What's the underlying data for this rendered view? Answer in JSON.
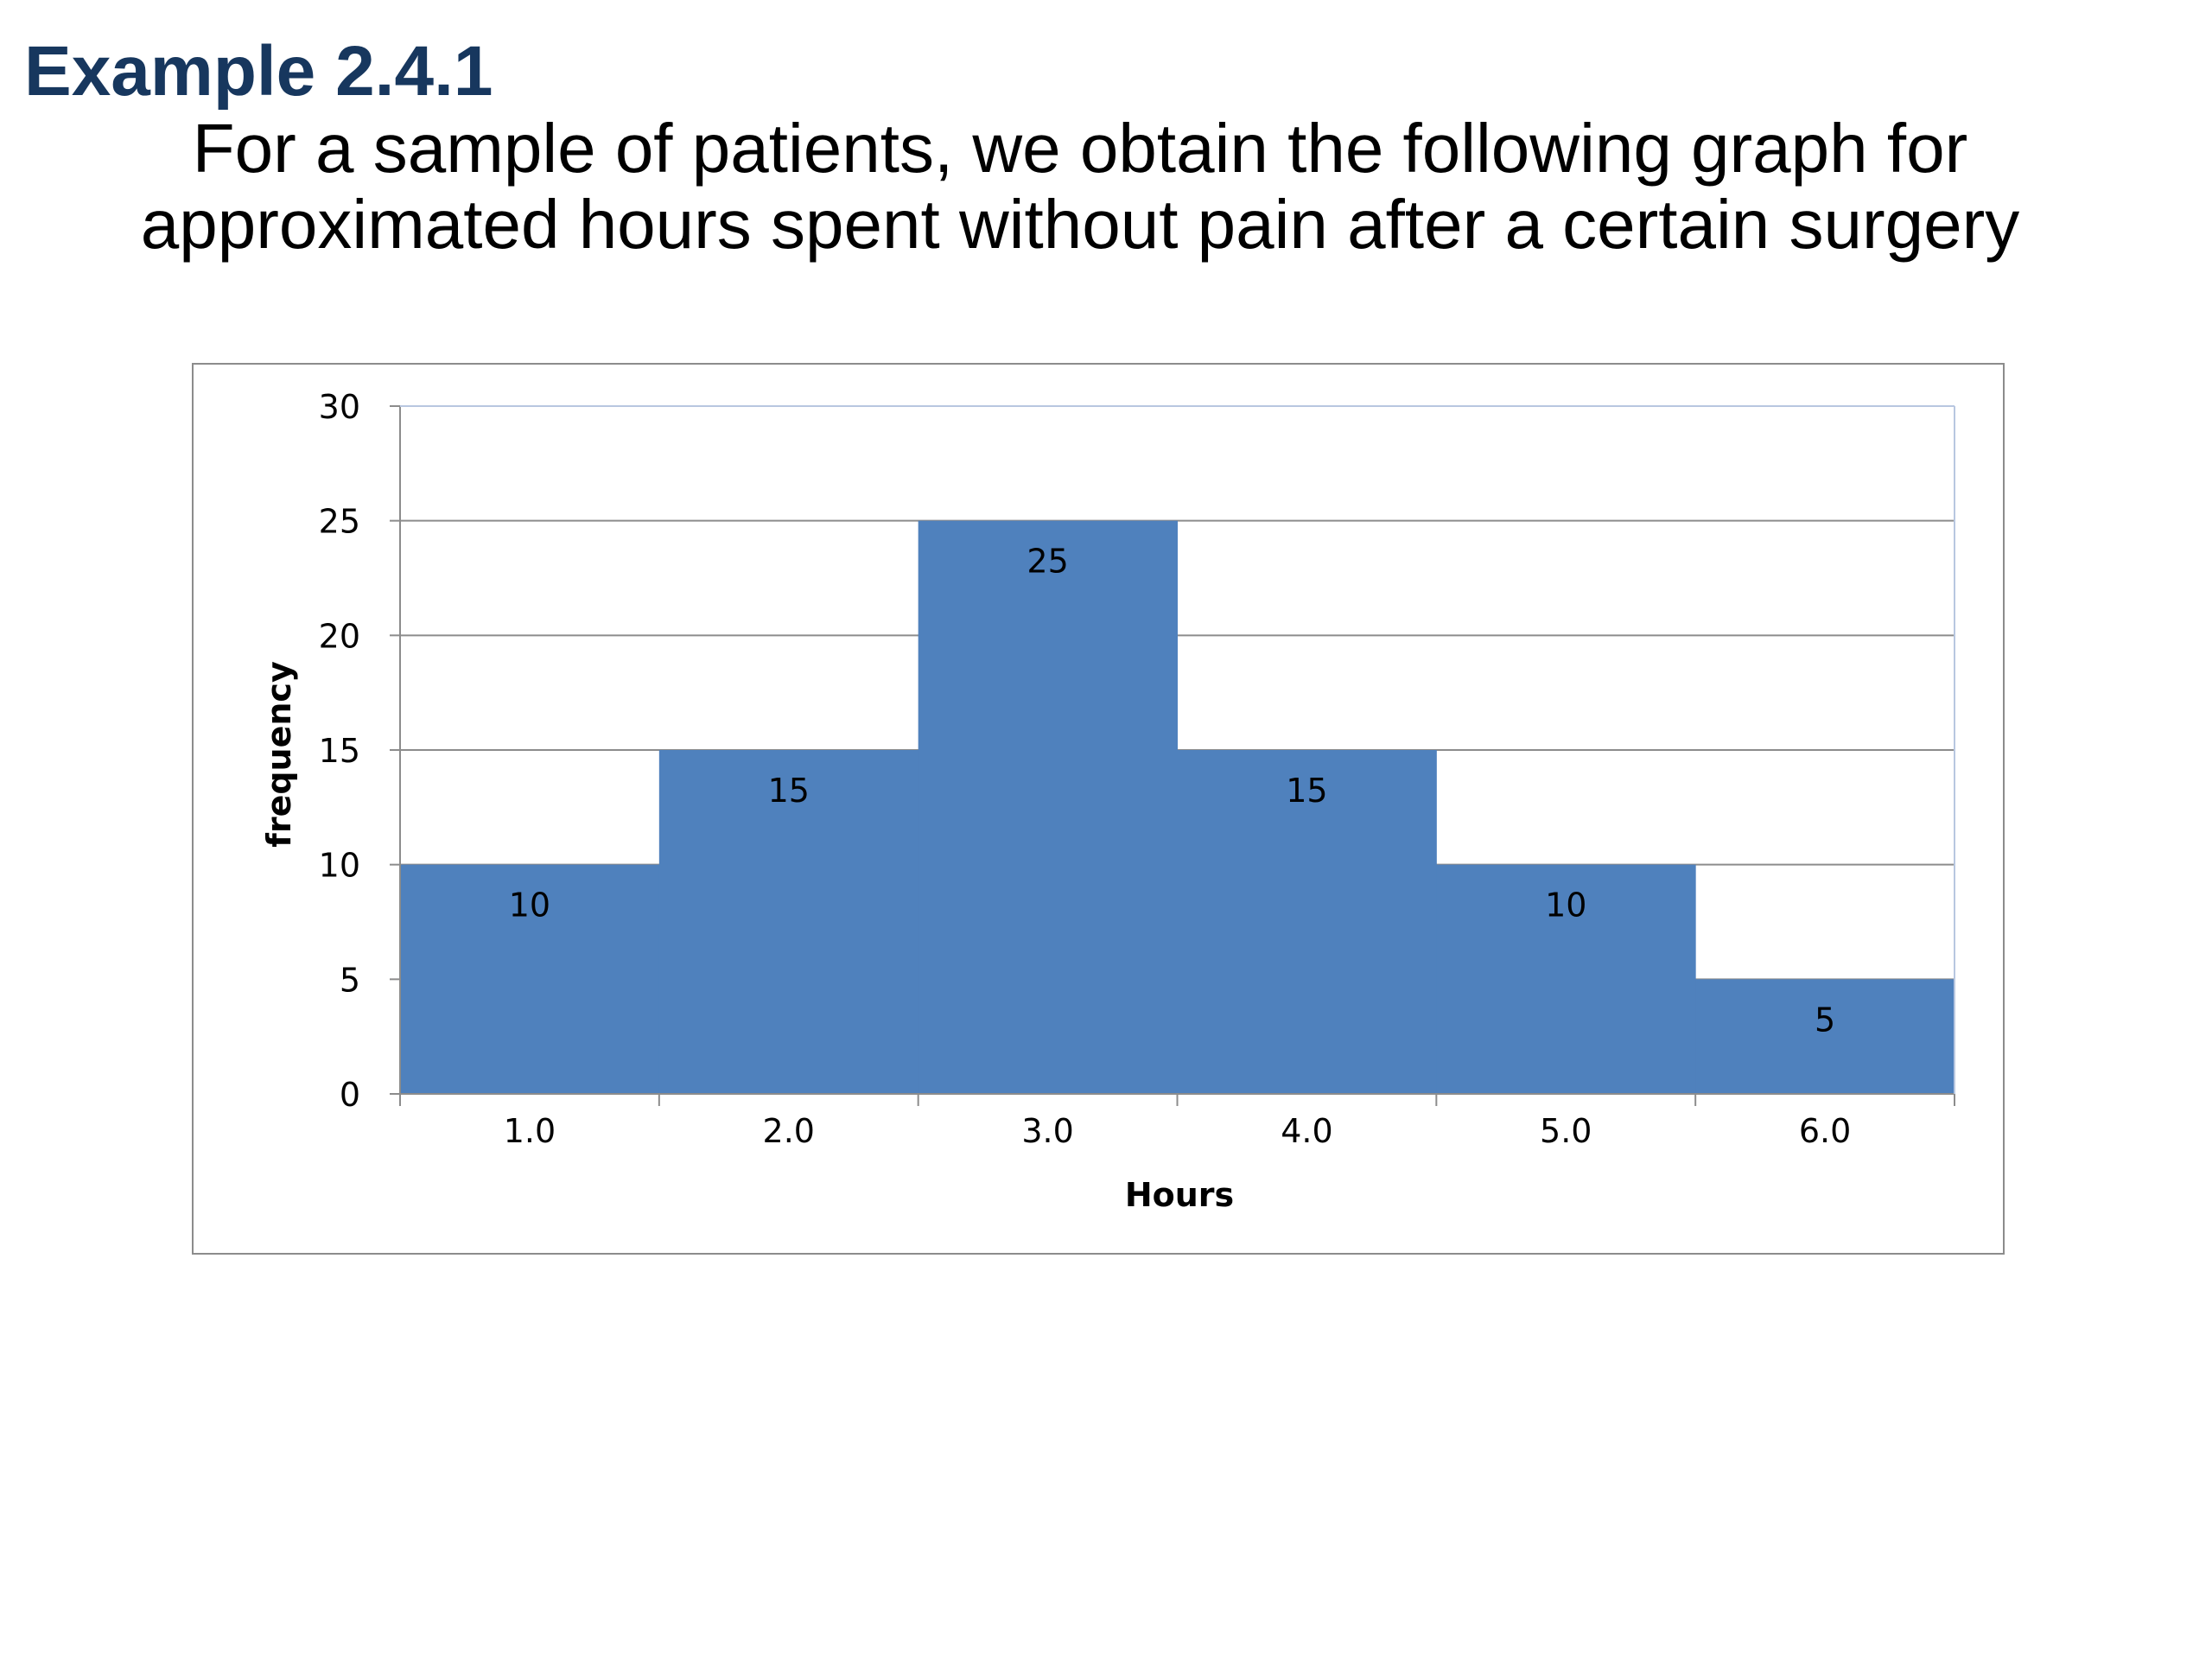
{
  "slide": {
    "title": "Example 2.4.1",
    "subtitle_line1": "For a sample of patients, we obtain the following graph for",
    "subtitle_line2": "approximated hours spent without pain after a certain surgery"
  },
  "colors": {
    "title": "#17375e",
    "bar": "#4f81bd",
    "grid": "#8c8c8c"
  },
  "chart_data": {
    "type": "bar",
    "categories": [
      "1.0",
      "2.0",
      "3.0",
      "4.0",
      "5.0",
      "6.0"
    ],
    "values": [
      10,
      15,
      25,
      15,
      10,
      5
    ],
    "data_labels": [
      "10",
      "15",
      "25",
      "15",
      "10",
      "5"
    ],
    "xlabel": "Hours",
    "ylabel": "frequency",
    "ylim": [
      0,
      30
    ],
    "yticks": [
      0,
      5,
      10,
      15,
      20,
      25,
      30
    ],
    "grid": true,
    "bar_gap": 0,
    "legend": "none"
  }
}
